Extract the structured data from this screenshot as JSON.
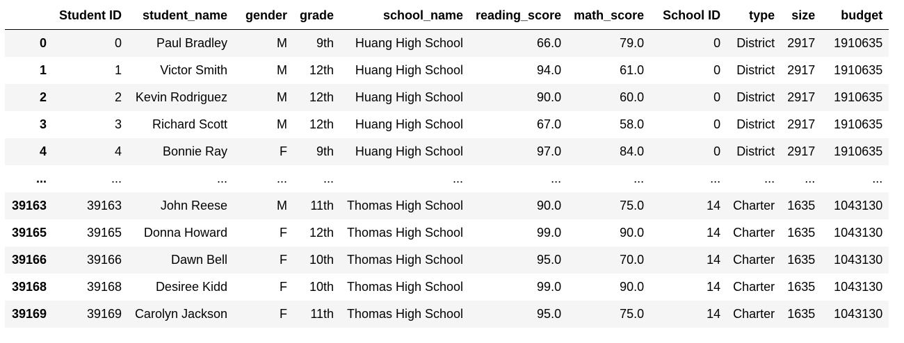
{
  "table": {
    "columns": [
      "",
      "Student ID",
      "student_name",
      "gender",
      "grade",
      "school_name",
      "reading_score",
      "math_score",
      "School ID",
      "type",
      "size",
      "budget"
    ],
    "rows": [
      {
        "index": "0",
        "cells": [
          "0",
          "Paul Bradley",
          "M",
          "9th",
          "Huang High School",
          "66.0",
          "79.0",
          "0",
          "District",
          "2917",
          "1910635"
        ]
      },
      {
        "index": "1",
        "cells": [
          "1",
          "Victor Smith",
          "M",
          "12th",
          "Huang High School",
          "94.0",
          "61.0",
          "0",
          "District",
          "2917",
          "1910635"
        ]
      },
      {
        "index": "2",
        "cells": [
          "2",
          "Kevin Rodriguez",
          "M",
          "12th",
          "Huang High School",
          "90.0",
          "60.0",
          "0",
          "District",
          "2917",
          "1910635"
        ]
      },
      {
        "index": "3",
        "cells": [
          "3",
          "Richard Scott",
          "M",
          "12th",
          "Huang High School",
          "67.0",
          "58.0",
          "0",
          "District",
          "2917",
          "1910635"
        ]
      },
      {
        "index": "4",
        "cells": [
          "4",
          "Bonnie Ray",
          "F",
          "9th",
          "Huang High School",
          "97.0",
          "84.0",
          "0",
          "District",
          "2917",
          "1910635"
        ]
      },
      {
        "index": "...",
        "cells": [
          "...",
          "...",
          "...",
          "...",
          "...",
          "...",
          "...",
          "...",
          "...",
          "...",
          "..."
        ]
      },
      {
        "index": "39163",
        "cells": [
          "39163",
          "John Reese",
          "M",
          "11th",
          "Thomas High School",
          "90.0",
          "75.0",
          "14",
          "Charter",
          "1635",
          "1043130"
        ]
      },
      {
        "index": "39165",
        "cells": [
          "39165",
          "Donna Howard",
          "F",
          "12th",
          "Thomas High School",
          "99.0",
          "90.0",
          "14",
          "Charter",
          "1635",
          "1043130"
        ]
      },
      {
        "index": "39166",
        "cells": [
          "39166",
          "Dawn Bell",
          "F",
          "10th",
          "Thomas High School",
          "95.0",
          "70.0",
          "14",
          "Charter",
          "1635",
          "1043130"
        ]
      },
      {
        "index": "39168",
        "cells": [
          "39168",
          "Desiree Kidd",
          "F",
          "10th",
          "Thomas High School",
          "99.0",
          "90.0",
          "14",
          "Charter",
          "1635",
          "1043130"
        ]
      },
      {
        "index": "39169",
        "cells": [
          "39169",
          "Carolyn Jackson",
          "F",
          "11th",
          "Thomas High School",
          "95.0",
          "75.0",
          "14",
          "Charter",
          "1635",
          "1043130"
        ]
      }
    ]
  }
}
